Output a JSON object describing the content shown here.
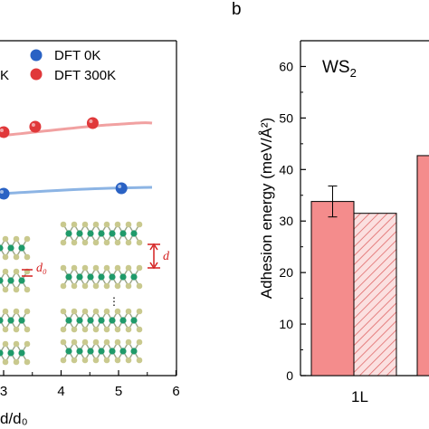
{
  "panel_b_label": "b",
  "chart_data": [
    {
      "type": "scatter",
      "panel": "a",
      "xlabel": "d/d₀",
      "x_ticks": [
        "3",
        "4",
        "5",
        "6"
      ],
      "xlim": [
        2.9,
        6.0
      ],
      "legend": [
        {
          "name": "DFT 0K",
          "color": "#2a62c4"
        },
        {
          "name": "DFT 300K",
          "color": "#e0383a"
        }
      ],
      "legend_partial_label": "K",
      "series": [
        {
          "name": "DFT 300K",
          "color": "#e0383a",
          "x": [
            3.0,
            3.55,
            4.55
          ],
          "fit_color": "#f1a1a1"
        },
        {
          "name": "DFT 0K",
          "color": "#2a62c4",
          "x": [
            3.0,
            5.05
          ],
          "fit_color": "#8cb4e4"
        }
      ],
      "inset_labels": {
        "d0": "d₀",
        "d": "d",
        "ellipsis": "⋮"
      }
    },
    {
      "type": "bar",
      "panel": "b",
      "title": "WS₂",
      "ylabel": "Adhesion energy (meV/Å²)",
      "ylim": [
        0,
        65
      ],
      "y_ticks": [
        0,
        10,
        20,
        30,
        40,
        50,
        60
      ],
      "categories": [
        "1L"
      ],
      "series": [
        {
          "style": "solid",
          "color": "#f48c8c",
          "values": [
            33.8
          ],
          "error": [
            3.0
          ]
        },
        {
          "style": "hatched",
          "color": "#f48c8c",
          "values": [
            31.5
          ]
        }
      ],
      "partial_bar": {
        "value": 42.7,
        "color": "#f48c8c"
      }
    }
  ]
}
